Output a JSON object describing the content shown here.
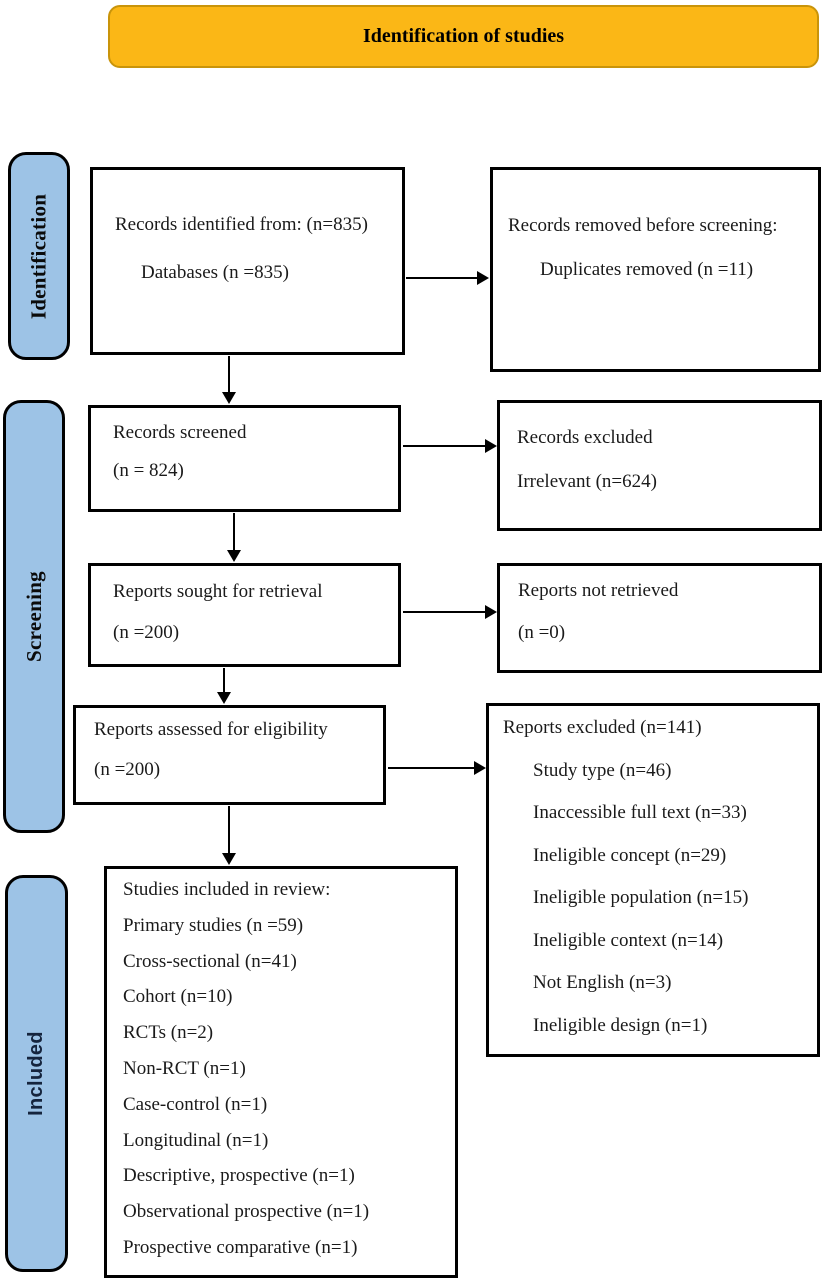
{
  "banner": {
    "title": "Identification of studies"
  },
  "colors": {
    "banner_bg": "#FBB716",
    "banner_border": "#C9940A",
    "stage_bg": "#9DC3E6",
    "box_border": "#000000",
    "background": "#FFFFFF"
  },
  "stages": {
    "identification": "Identification",
    "screening": "Screening",
    "included": "Included"
  },
  "flow": {
    "records_identified": {
      "line1": "Records identified from: (n=835)",
      "line2": "Databases (n =835)"
    },
    "records_removed": {
      "line1": "Records removed before screening:",
      "line2": "Duplicates removed (n =11)"
    },
    "records_screened": {
      "line1": "Records screened",
      "line2": "(n = 824)"
    },
    "records_excluded": {
      "line1": "Records excluded",
      "line2": "Irrelevant (n=624)"
    },
    "reports_sought": {
      "line1": "Reports sought for retrieval",
      "line2": "(n =200)"
    },
    "reports_not_retrieved": {
      "line1": "Reports not retrieved",
      "line2": "(n =0)"
    },
    "reports_assessed": {
      "line1": "Reports assessed for eligibility",
      "line2": "(n =200)"
    },
    "reports_excluded": {
      "title": "Reports excluded (n=141)",
      "items": [
        "Study type (n=46)",
        "Inaccessible full text (n=33)",
        "Ineligible concept (n=29)",
        "Ineligible population (n=15)",
        "Ineligible context (n=14)",
        "Not English (n=3)",
        "Ineligible design (n=1)"
      ]
    },
    "studies_included": {
      "title": "Studies included in review:",
      "items": [
        "Primary studies (n =59)",
        "Cross-sectional (n=41)",
        "Cohort (n=10)",
        "RCTs (n=2)",
        "Non-RCT (n=1)",
        "Case-control (n=1)",
        "Longitudinal (n=1)",
        "Descriptive, prospective (n=1)",
        "Observational prospective (n=1)",
        "Prospective comparative (n=1)"
      ]
    }
  }
}
